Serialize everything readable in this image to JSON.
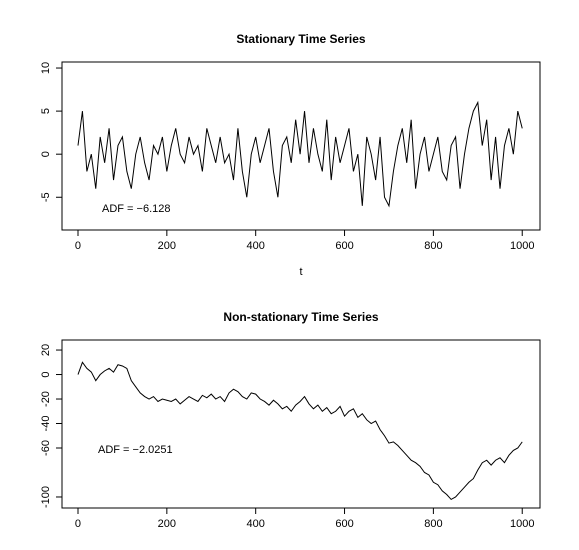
{
  "chart_data": [
    {
      "type": "line",
      "title": "Stationary Time Series",
      "xlabel": "t",
      "annotation": "ADF = −6.128",
      "x": [
        0,
        10,
        20,
        30,
        40,
        50,
        60,
        70,
        80,
        90,
        100,
        110,
        120,
        130,
        140,
        150,
        160,
        170,
        180,
        190,
        200,
        210,
        220,
        230,
        240,
        250,
        260,
        270,
        280,
        290,
        300,
        310,
        320,
        330,
        340,
        350,
        360,
        370,
        380,
        390,
        400,
        410,
        420,
        430,
        440,
        450,
        460,
        470,
        480,
        490,
        500,
        510,
        520,
        530,
        540,
        550,
        560,
        570,
        580,
        590,
        600,
        610,
        620,
        630,
        640,
        650,
        660,
        670,
        680,
        690,
        700,
        710,
        720,
        730,
        740,
        750,
        760,
        770,
        780,
        790,
        800,
        810,
        820,
        830,
        840,
        850,
        860,
        870,
        880,
        890,
        900,
        910,
        920,
        930,
        940,
        950,
        960,
        970,
        980,
        990,
        1000
      ],
      "series": [
        {
          "color": "#000000",
          "values": [
            1,
            5,
            -2,
            0,
            -4,
            2,
            -1,
            3,
            -3,
            1,
            2,
            -2,
            -4,
            0,
            2,
            -1,
            -3,
            1,
            0,
            2,
            -2,
            1,
            3,
            0,
            -1,
            2,
            0,
            1,
            -2,
            3,
            1,
            -1,
            2,
            -1,
            0,
            -3,
            3,
            -2,
            -5,
            0,
            2,
            -1,
            1,
            3,
            -2,
            -5,
            1,
            2,
            -1,
            4,
            0,
            5,
            -1,
            3,
            0,
            -2,
            4,
            -3,
            2,
            -1,
            1,
            3,
            -2,
            0,
            -6,
            2,
            0,
            -3,
            2,
            -5,
            -6,
            -2,
            1,
            3,
            -1,
            4,
            -4,
            0,
            2,
            -2,
            0,
            2,
            -2,
            -3,
            1,
            2,
            -4,
            0,
            3,
            5,
            6,
            1,
            4,
            -3,
            2,
            -4,
            1,
            3,
            0,
            5,
            3
          ]
        }
      ],
      "xlim": [
        -36,
        1040
      ],
      "xticks": [
        0,
        200,
        400,
        600,
        800,
        1000
      ],
      "ylim": [
        -8.8,
        10.7
      ],
      "yticks": [
        -5,
        0,
        5,
        10
      ]
    },
    {
      "type": "line",
      "title": "Non-stationary Time Series",
      "annotation": "ADF = −2.0251",
      "x": [
        0,
        10,
        20,
        30,
        40,
        50,
        60,
        70,
        80,
        90,
        100,
        110,
        120,
        130,
        140,
        150,
        160,
        170,
        180,
        190,
        200,
        210,
        220,
        230,
        240,
        250,
        260,
        270,
        280,
        290,
        300,
        310,
        320,
        330,
        340,
        350,
        360,
        370,
        380,
        390,
        400,
        410,
        420,
        430,
        440,
        450,
        460,
        470,
        480,
        490,
        500,
        510,
        520,
        530,
        540,
        550,
        560,
        570,
        580,
        590,
        600,
        610,
        620,
        630,
        640,
        650,
        660,
        670,
        680,
        690,
        700,
        710,
        720,
        730,
        740,
        750,
        760,
        770,
        780,
        790,
        800,
        810,
        820,
        830,
        840,
        850,
        860,
        870,
        880,
        890,
        900,
        910,
        920,
        930,
        940,
        950,
        960,
        970,
        980,
        990,
        1000
      ],
      "series": [
        {
          "color": "#000000",
          "values": [
            0,
            10,
            5,
            2,
            -5,
            0,
            3,
            5,
            2,
            8,
            7,
            5,
            -5,
            -10,
            -15,
            -18,
            -20,
            -18,
            -22,
            -20,
            -21,
            -22,
            -20,
            -24,
            -21,
            -18,
            -20,
            -22,
            -17,
            -19,
            -16,
            -20,
            -18,
            -22,
            -15,
            -12,
            -14,
            -18,
            -20,
            -15,
            -16,
            -20,
            -22,
            -25,
            -21,
            -24,
            -28,
            -26,
            -30,
            -25,
            -22,
            -18,
            -24,
            -28,
            -25,
            -30,
            -27,
            -32,
            -30,
            -26,
            -34,
            -30,
            -28,
            -35,
            -32,
            -37,
            -40,
            -38,
            -45,
            -50,
            -56,
            -55,
            -58,
            -62,
            -66,
            -70,
            -72,
            -75,
            -80,
            -82,
            -88,
            -90,
            -95,
            -98,
            -102,
            -100,
            -96,
            -92,
            -88,
            -85,
            -78,
            -72,
            -70,
            -74,
            -70,
            -68,
            -72,
            -66,
            -62,
            -60,
            -55
          ]
        }
      ],
      "xlim": [
        -36,
        1040
      ],
      "xticks": [
        0,
        200,
        400,
        600,
        800,
        1000
      ],
      "ylim": [
        -109,
        28.2
      ],
      "yticks": [
        -100,
        -60,
        -40,
        -20,
        0,
        20
      ]
    }
  ]
}
